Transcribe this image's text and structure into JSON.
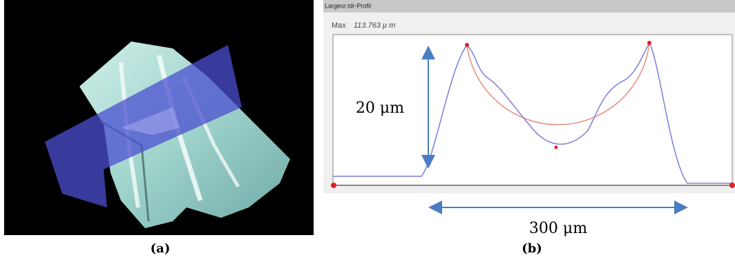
{
  "panel_a": {
    "caption": "(a)"
  },
  "panel_b": {
    "caption": "(b)",
    "window_title": "Largeur.tdr-Profil",
    "max_label": "Max",
    "max_value": "113.763 μ m",
    "height_annotation": "20 μm",
    "width_annotation": "300 μm"
  }
}
